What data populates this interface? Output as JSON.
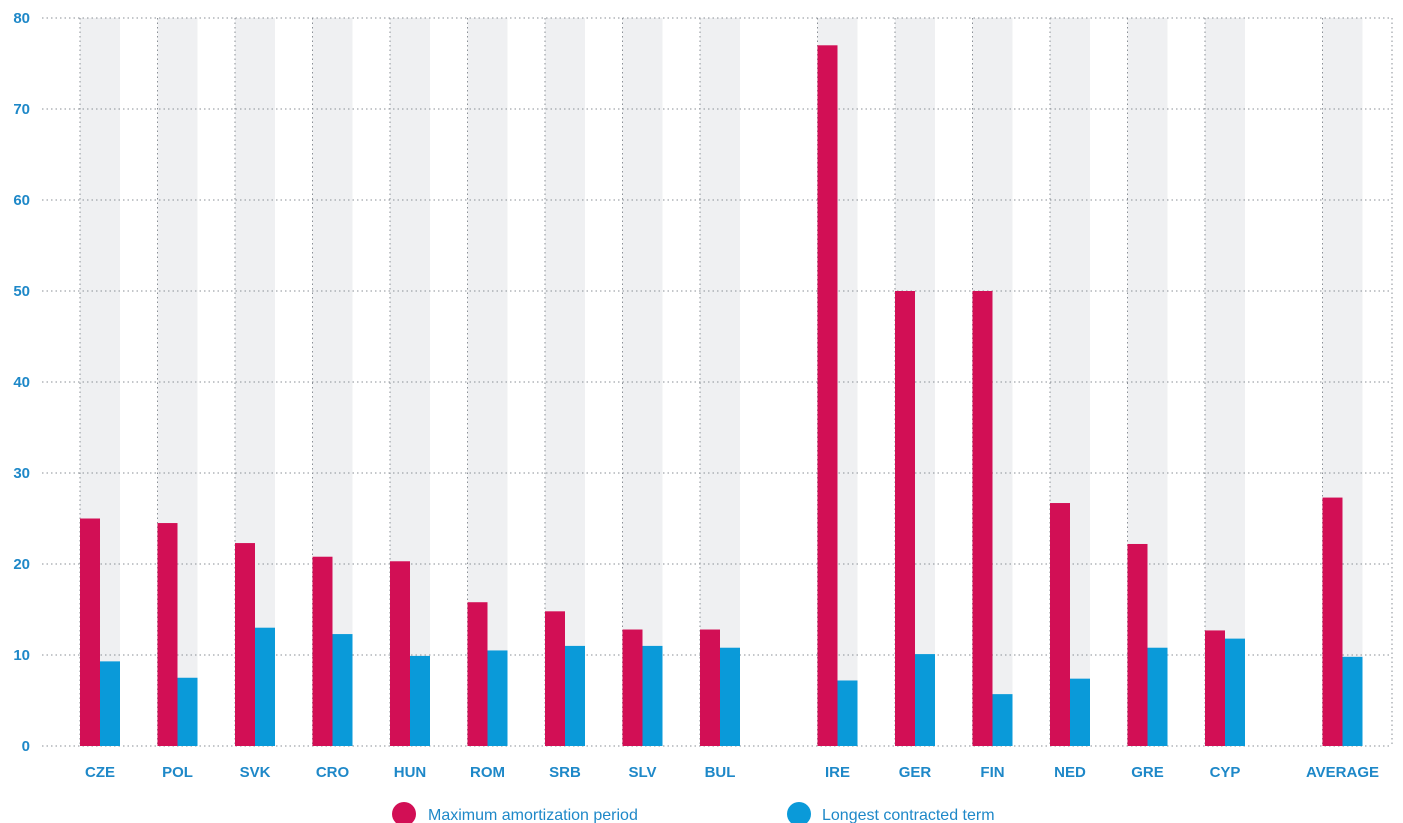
{
  "chart_data": {
    "type": "bar",
    "categories": [
      "CZE",
      "POL",
      "SVK",
      "CRO",
      "HUN",
      "ROM",
      "SRB",
      "SLV",
      "BUL",
      "IRE",
      "GER",
      "FIN",
      "NED",
      "GRE",
      "CYP",
      "AVERAGE"
    ],
    "group_breaks_after": [
      "BUL",
      "CYP"
    ],
    "series": [
      {
        "name": "Maximum amortization period",
        "color": "#d20f55",
        "values": [
          25,
          24.5,
          22.3,
          20.8,
          20.3,
          15.8,
          14.8,
          12.8,
          12.8,
          77,
          50,
          50,
          26.7,
          22.2,
          12.7,
          27.3
        ]
      },
      {
        "name": "Longest contracted term",
        "color": "#0a9ad9",
        "values": [
          9.3,
          7.5,
          13,
          12.3,
          9.9,
          10.5,
          11,
          11,
          10.8,
          7.2,
          10.1,
          5.7,
          7.4,
          10.8,
          11.8,
          9.8
        ]
      }
    ],
    "ylim": [
      0,
      80
    ],
    "yticks": [
      "0",
      "10",
      "20",
      "30",
      "40",
      "50",
      "60",
      "70",
      "80"
    ],
    "column_background_color": "#eff0f2",
    "grid": true,
    "legend_position": "bottom-center"
  }
}
